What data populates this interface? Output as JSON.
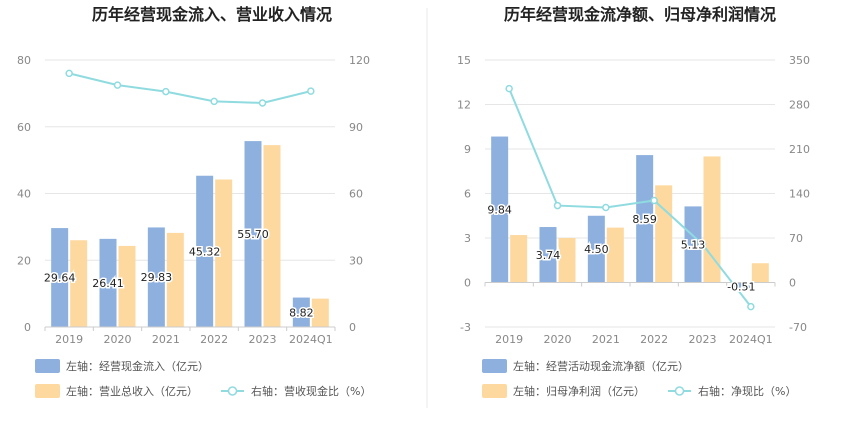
{
  "colors": {
    "bar_primary": "#8eb0de",
    "bar_secondary": "#fdd9a0",
    "line": "#8fdbe0",
    "grid": "#e6e6e6",
    "divider": "#e8e8e8"
  },
  "chart_data": [
    {
      "type": "bar",
      "title": "历年经营现金流入、营业收入情况",
      "categories": [
        "2019",
        "2020",
        "2021",
        "2022",
        "2023",
        "2024Q1"
      ],
      "left_axis": {
        "ticks": [
          "0",
          "20",
          "40",
          "60",
          "80"
        ],
        "ylim": [
          0,
          80
        ]
      },
      "right_axis": {
        "ticks": [
          "0",
          "30",
          "60",
          "90",
          "120"
        ],
        "ylim": [
          0,
          120
        ]
      },
      "grid": true,
      "legend_position": "bottom",
      "series": [
        {
          "name": "左轴：经营现金流入（亿元）",
          "type": "bar",
          "axis": "left",
          "values": [
            29.64,
            26.41,
            29.83,
            45.32,
            55.7,
            8.82
          ],
          "labels": [
            "29.64",
            "26.41",
            "29.83",
            "45.32",
            "55.70",
            "8.82"
          ]
        },
        {
          "name": "左轴：营业总收入（亿元）",
          "type": "bar",
          "axis": "left",
          "values": [
            26.0,
            24.3,
            28.2,
            44.2,
            54.5,
            8.5
          ]
        },
        {
          "name": "右轴：营收现金比（%）",
          "type": "line",
          "axis": "right",
          "values": [
            114,
            108.7,
            105.8,
            101.4,
            100.7,
            106
          ]
        }
      ]
    },
    {
      "type": "bar",
      "title": "历年经营现金流净额、归母净利润情况",
      "categories": [
        "2019",
        "2020",
        "2021",
        "2022",
        "2023",
        "2024Q1"
      ],
      "left_axis": {
        "ticks": [
          "-3",
          "0",
          "3",
          "6",
          "9",
          "12",
          "15"
        ],
        "ylim": [
          -3,
          15
        ]
      },
      "right_axis": {
        "ticks": [
          "-70",
          "0",
          "70",
          "140",
          "210",
          "280",
          "350"
        ],
        "ylim": [
          -70,
          350
        ]
      },
      "grid": true,
      "legend_position": "bottom",
      "series": [
        {
          "name": "左轴：经营活动现金流净额（亿元）",
          "type": "bar",
          "axis": "left",
          "values": [
            9.84,
            3.74,
            4.5,
            8.59,
            5.13,
            -0.51
          ],
          "labels": [
            "9.84",
            "3.74",
            "4.50",
            "8.59",
            "5.13",
            "-0.51"
          ]
        },
        {
          "name": "左轴：归母净利润（亿元）",
          "type": "bar",
          "axis": "left",
          "values": [
            3.2,
            3.0,
            3.7,
            6.55,
            8.5,
            1.3
          ]
        },
        {
          "name": "右轴：净现比（%）",
          "type": "line",
          "axis": "right",
          "values": [
            305,
            121,
            118,
            129,
            60,
            -38
          ]
        }
      ]
    }
  ]
}
